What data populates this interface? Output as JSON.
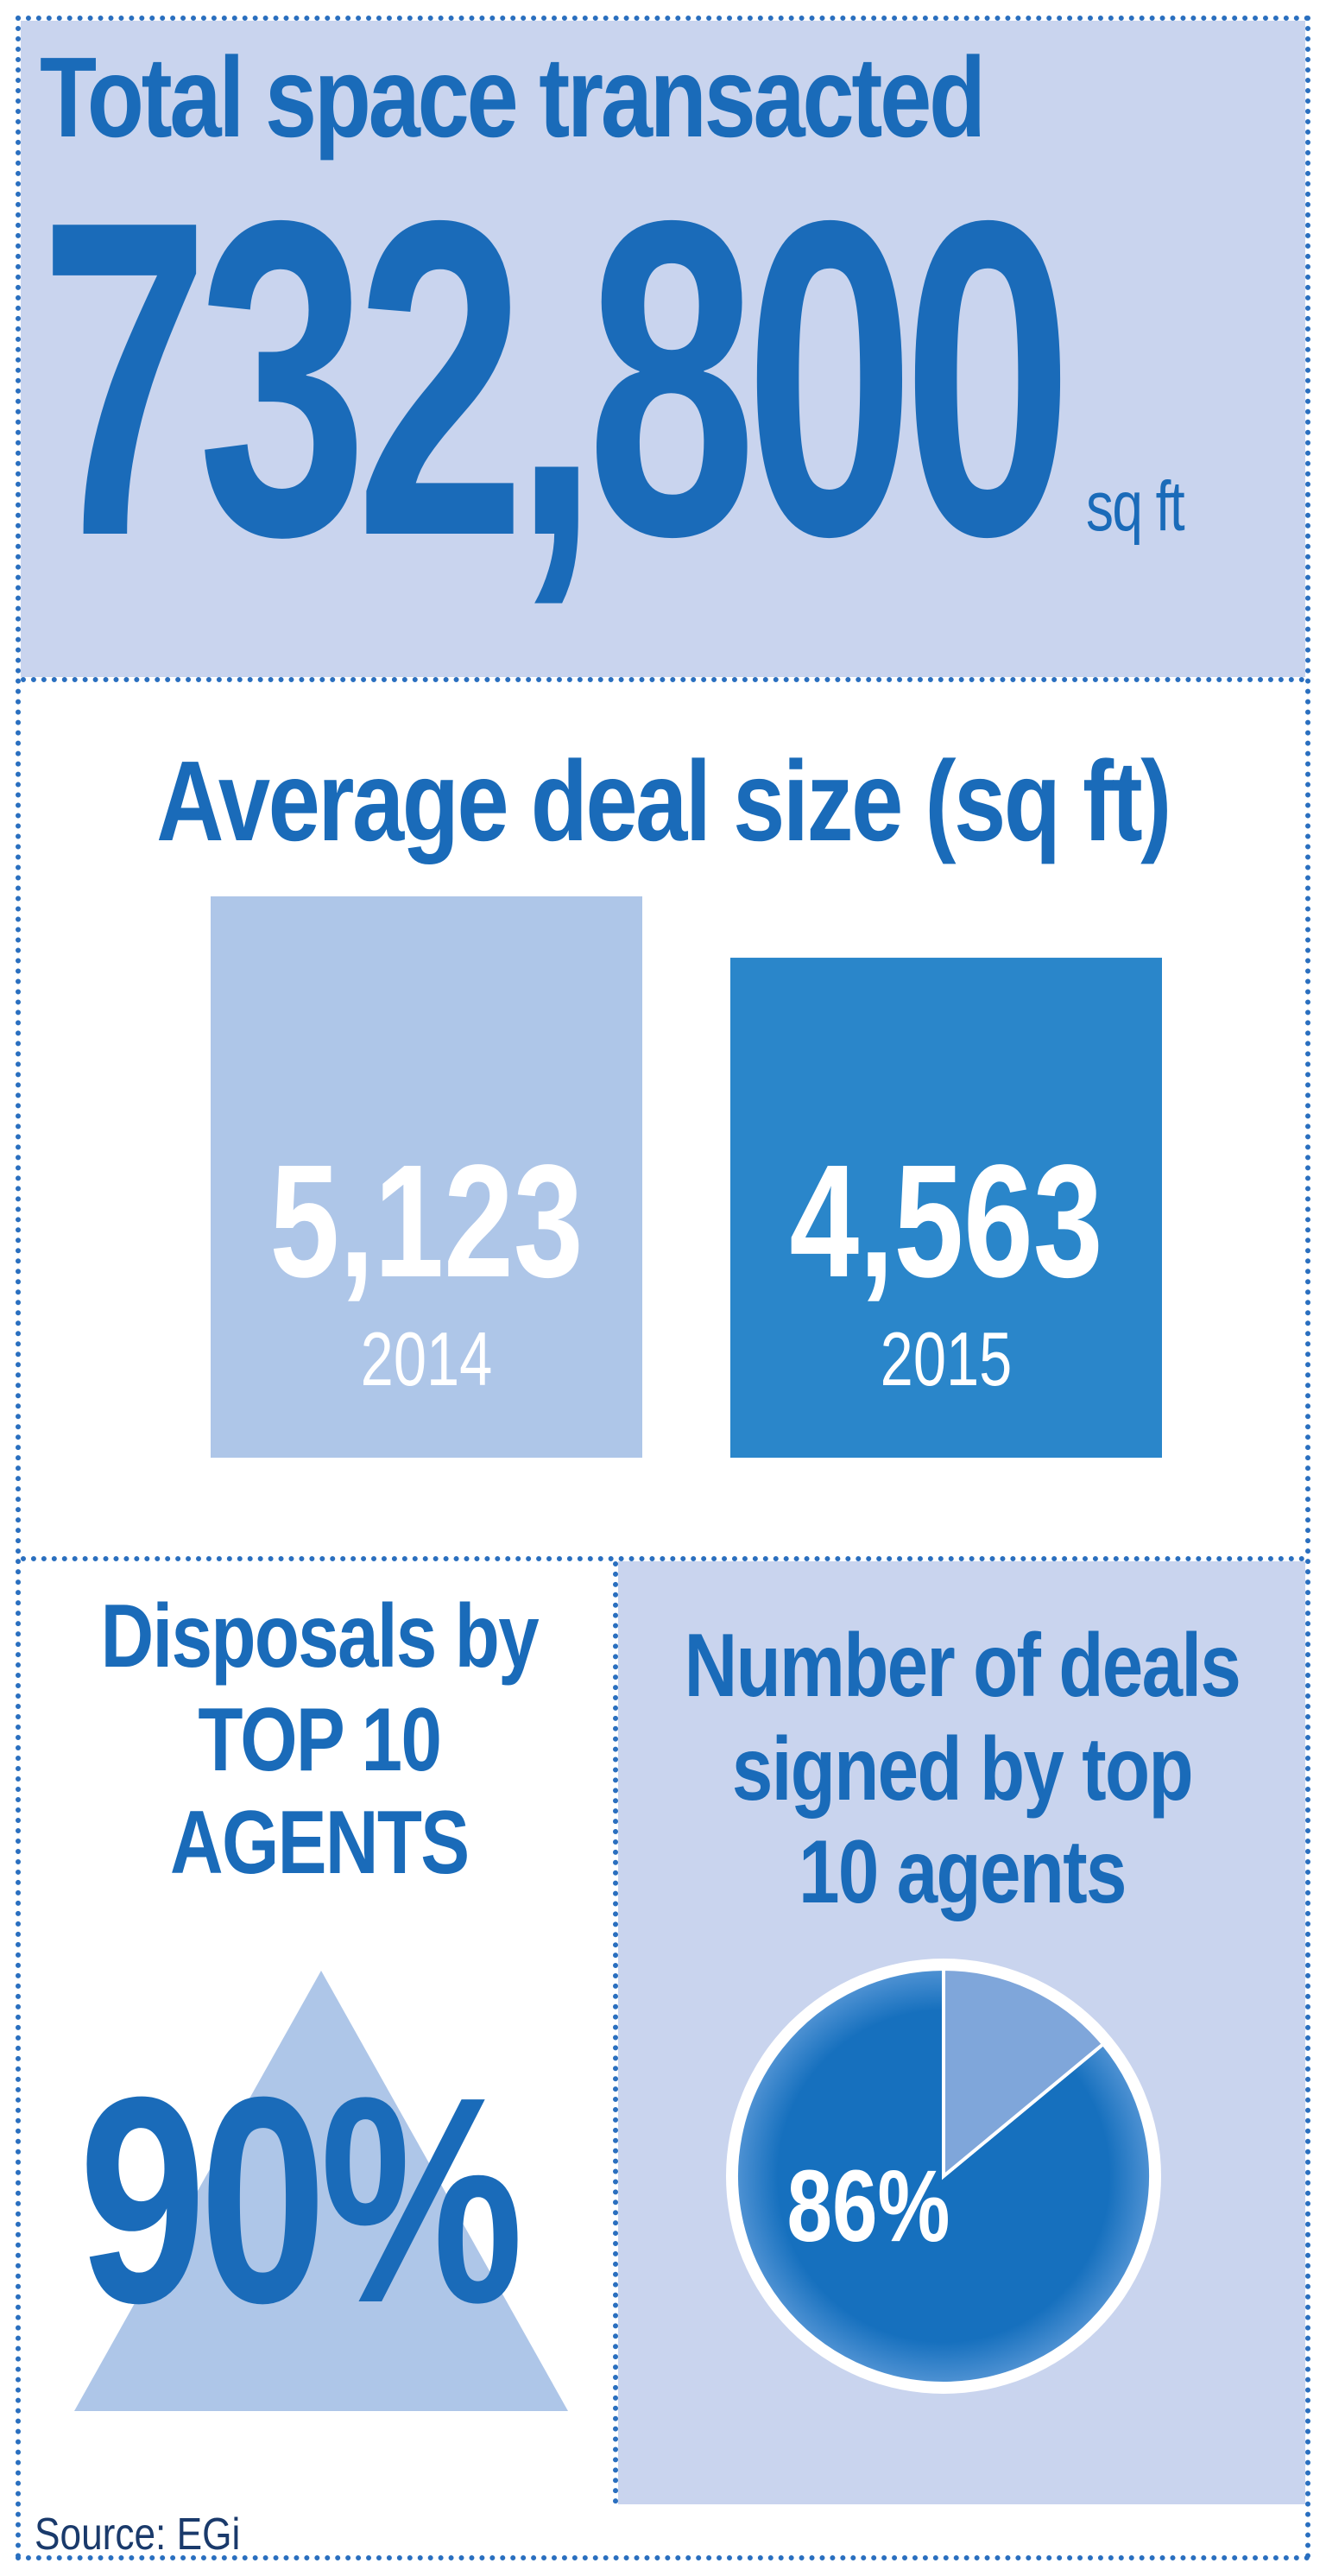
{
  "total": {
    "title": "Total space transacted",
    "value": "732,800",
    "unit": "sq ft"
  },
  "average": {
    "title": "Average deal size (sq ft)"
  },
  "disposals": {
    "title_lines": [
      "Disposals by",
      "TOP 10",
      "AGENTS"
    ],
    "value_label": "90%"
  },
  "deals": {
    "title_lines": [
      "Number of deals",
      "signed by top",
      "10 agents"
    ],
    "value_label": "86%"
  },
  "source": "Source: EGi",
  "colors": {
    "brand": "#1a6bb9",
    "panel": "#c9d4ee",
    "bar_2014": "#aec6e8",
    "bar_2015": "#2a86ca",
    "pie_main": "#1670be",
    "pie_rest": "#7fa6da"
  },
  "chart_data": [
    {
      "type": "bar",
      "categories": [
        "2014",
        "2015"
      ],
      "values": [
        5123,
        4563
      ],
      "value_labels": [
        "5,123",
        "4,563"
      ],
      "title": "Average deal size (sq ft)"
    },
    {
      "type": "pie",
      "values": [
        86,
        14
      ],
      "value_label": "86%",
      "title": "Number of deals signed by top 10 agents"
    },
    {
      "type": "other",
      "values": [
        90
      ],
      "value_label": "90%",
      "title": "Disposals by TOP 10 AGENTS"
    }
  ]
}
